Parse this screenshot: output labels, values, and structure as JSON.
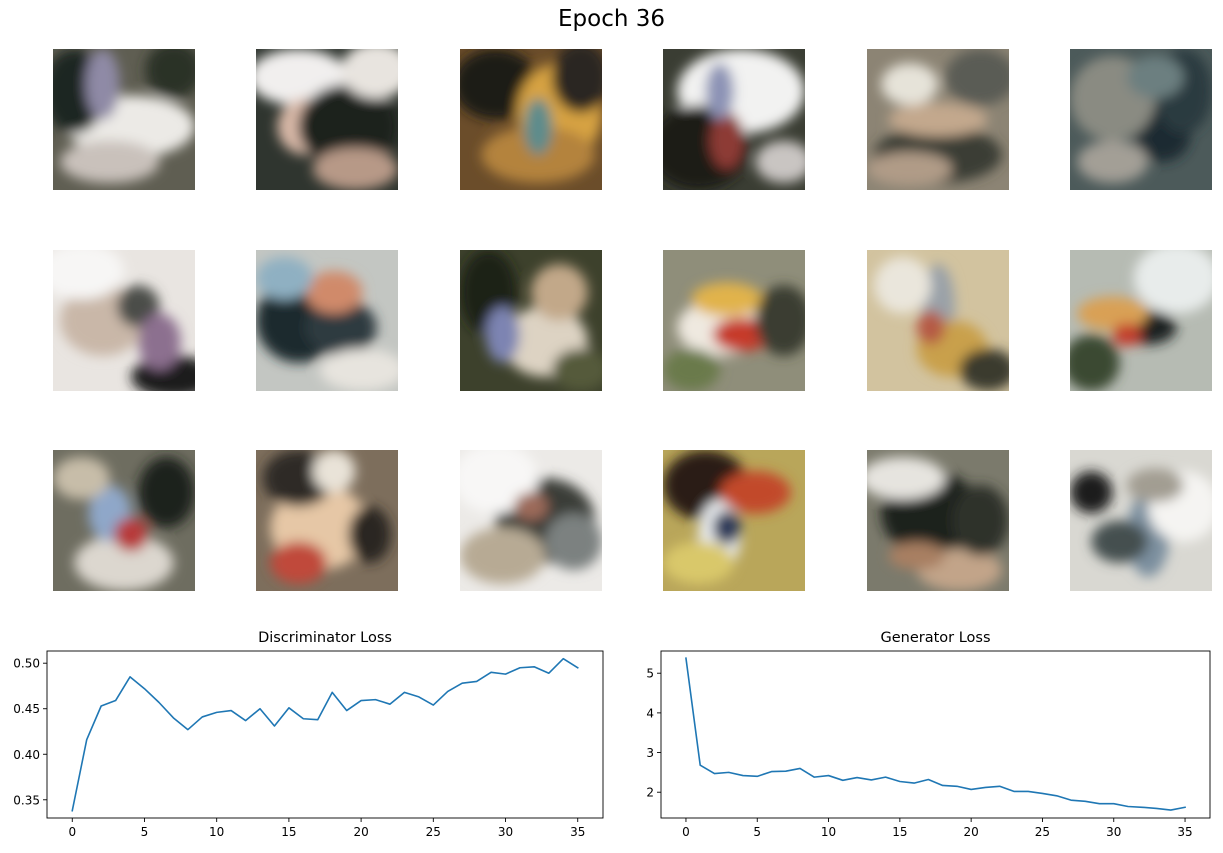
{
  "figure": {
    "suptitle": "Epoch 36",
    "grid": {
      "rows": 3,
      "cols": 6
    },
    "samples": [
      {
        "id": "sample-1",
        "base": "#5f5e52",
        "blobs": [
          [
            "#eceae6",
            0.55,
            0.55,
            0.45,
            0.22
          ],
          [
            "#1f2520",
            0.15,
            0.3,
            0.22,
            0.3
          ],
          [
            "#8f8aa6",
            0.35,
            0.25,
            0.12,
            0.25
          ],
          [
            "#2a3026",
            0.85,
            0.15,
            0.2,
            0.2
          ],
          [
            "#c9c1bb",
            0.4,
            0.8,
            0.35,
            0.15
          ]
        ]
      },
      {
        "id": "sample-2",
        "base": "#2f352f",
        "blobs": [
          [
            "#f1efee",
            0.3,
            0.2,
            0.35,
            0.2
          ],
          [
            "#d9b9a8",
            0.35,
            0.55,
            0.2,
            0.2
          ],
          [
            "#1b201c",
            0.65,
            0.55,
            0.35,
            0.3
          ],
          [
            "#b79987",
            0.7,
            0.85,
            0.3,
            0.15
          ],
          [
            "#e8e4df",
            0.85,
            0.15,
            0.25,
            0.2
          ]
        ]
      },
      {
        "id": "sample-3",
        "base": "#6b4d2a",
        "blobs": [
          [
            "#1b1a16",
            0.25,
            0.25,
            0.3,
            0.25
          ],
          [
            "#d7a343",
            0.7,
            0.45,
            0.3,
            0.35
          ],
          [
            "#b4833e",
            0.55,
            0.75,
            0.4,
            0.2
          ],
          [
            "#5d8c8c",
            0.55,
            0.55,
            0.1,
            0.2
          ],
          [
            "#2b2520",
            0.85,
            0.2,
            0.2,
            0.25
          ]
        ]
      },
      {
        "id": "sample-4",
        "base": "#3a3d33",
        "blobs": [
          [
            "#f2f2f1",
            0.55,
            0.3,
            0.45,
            0.3
          ],
          [
            "#1d1e18",
            0.25,
            0.7,
            0.35,
            0.3
          ],
          [
            "#8d3a34",
            0.45,
            0.65,
            0.12,
            0.2
          ],
          [
            "#c9c5c2",
            0.85,
            0.8,
            0.2,
            0.15
          ],
          [
            "#8c93b5",
            0.4,
            0.3,
            0.1,
            0.2
          ]
        ]
      },
      {
        "id": "sample-5",
        "base": "#8c8474",
        "blobs": [
          [
            "#3a3c36",
            0.5,
            0.75,
            0.45,
            0.2
          ],
          [
            "#c3a88d",
            0.5,
            0.5,
            0.35,
            0.12
          ],
          [
            "#e6e3d9",
            0.3,
            0.25,
            0.2,
            0.15
          ],
          [
            "#5a5c55",
            0.8,
            0.2,
            0.25,
            0.2
          ],
          [
            "#b09b87",
            0.3,
            0.85,
            0.3,
            0.12
          ]
        ]
      },
      {
        "id": "sample-6",
        "base": "#4c5a5a",
        "blobs": [
          [
            "#1e2a33",
            0.65,
            0.6,
            0.2,
            0.2
          ],
          [
            "#8a8b82",
            0.3,
            0.35,
            0.3,
            0.3
          ],
          [
            "#2b3a3f",
            0.8,
            0.3,
            0.2,
            0.3
          ],
          [
            "#a39f96",
            0.3,
            0.8,
            0.25,
            0.15
          ],
          [
            "#6c7f80",
            0.6,
            0.2,
            0.2,
            0.15
          ]
        ]
      },
      {
        "id": "sample-7",
        "base": "#e9e5e1",
        "blobs": [
          [
            "#1a1d1a",
            0.85,
            0.9,
            0.3,
            0.15
          ],
          [
            "#c9b7a8",
            0.35,
            0.5,
            0.3,
            0.25
          ],
          [
            "#4b4e49",
            0.6,
            0.4,
            0.15,
            0.15
          ],
          [
            "#8c6f8f",
            0.75,
            0.65,
            0.15,
            0.2
          ],
          [
            "#f7f6f5",
            0.2,
            0.15,
            0.3,
            0.2
          ]
        ]
      },
      {
        "id": "sample-8",
        "base": "#c3c6c2",
        "blobs": [
          [
            "#1f2b2f",
            0.3,
            0.5,
            0.3,
            0.3
          ],
          [
            "#2f3a3f",
            0.6,
            0.55,
            0.25,
            0.2
          ],
          [
            "#d08a6a",
            0.55,
            0.3,
            0.2,
            0.15
          ],
          [
            "#e7e4de",
            0.75,
            0.85,
            0.3,
            0.15
          ],
          [
            "#8fb0c2",
            0.2,
            0.2,
            0.2,
            0.15
          ]
        ]
      },
      {
        "id": "sample-9",
        "base": "#3d412c",
        "blobs": [
          [
            "#ddd3c3",
            0.6,
            0.65,
            0.3,
            0.25
          ],
          [
            "#1c2018",
            0.2,
            0.3,
            0.2,
            0.3
          ],
          [
            "#7d84b2",
            0.3,
            0.6,
            0.12,
            0.2
          ],
          [
            "#c2a889",
            0.7,
            0.3,
            0.2,
            0.2
          ],
          [
            "#545a3a",
            0.85,
            0.85,
            0.2,
            0.15
          ]
        ]
      },
      {
        "id": "sample-10",
        "base": "#8f8e7a",
        "blobs": [
          [
            "#efe9e0",
            0.4,
            0.55,
            0.3,
            0.2
          ],
          [
            "#c63a2a",
            0.55,
            0.6,
            0.2,
            0.12
          ],
          [
            "#e1b34c",
            0.45,
            0.35,
            0.25,
            0.12
          ],
          [
            "#3a3d30",
            0.85,
            0.5,
            0.2,
            0.25
          ],
          [
            "#6b7a4b",
            0.2,
            0.85,
            0.2,
            0.15
          ]
        ]
      },
      {
        "id": "sample-11",
        "base": "#d2c39f",
        "blobs": [
          [
            "#9aa1a8",
            0.5,
            0.4,
            0.12,
            0.3
          ],
          [
            "#c9a04b",
            0.6,
            0.7,
            0.25,
            0.2
          ],
          [
            "#b55a45",
            0.45,
            0.55,
            0.1,
            0.12
          ],
          [
            "#eae6dc",
            0.25,
            0.25,
            0.2,
            0.2
          ],
          [
            "#3a3a2e",
            0.85,
            0.85,
            0.2,
            0.15
          ]
        ]
      },
      {
        "id": "sample-12",
        "base": "#b6bbb3",
        "blobs": [
          [
            "#1f2420",
            0.55,
            0.55,
            0.2,
            0.12
          ],
          [
            "#d9a054",
            0.3,
            0.45,
            0.25,
            0.12
          ],
          [
            "#3b4a33",
            0.15,
            0.8,
            0.2,
            0.2
          ],
          [
            "#e8eceb",
            0.75,
            0.2,
            0.3,
            0.25
          ],
          [
            "#c23a2a",
            0.4,
            0.6,
            0.1,
            0.08
          ]
        ]
      },
      {
        "id": "sample-13",
        "base": "#6e6d60",
        "blobs": [
          [
            "#dcd7cf",
            0.5,
            0.8,
            0.35,
            0.2
          ],
          [
            "#1c211d",
            0.8,
            0.3,
            0.2,
            0.25
          ],
          [
            "#8fa7c9",
            0.4,
            0.45,
            0.15,
            0.2
          ],
          [
            "#b73a3a",
            0.55,
            0.6,
            0.12,
            0.12
          ],
          [
            "#c7bda9",
            0.2,
            0.2,
            0.2,
            0.15
          ]
        ]
      },
      {
        "id": "sample-14",
        "base": "#7d6e5c",
        "blobs": [
          [
            "#e6c7a6",
            0.45,
            0.55,
            0.35,
            0.3
          ],
          [
            "#2f2c25",
            0.3,
            0.2,
            0.25,
            0.2
          ],
          [
            "#2a2522",
            0.8,
            0.6,
            0.15,
            0.2
          ],
          [
            "#c04a3a",
            0.3,
            0.8,
            0.2,
            0.15
          ],
          [
            "#e9e3d8",
            0.55,
            0.15,
            0.15,
            0.15
          ]
        ]
      },
      {
        "id": "sample-15",
        "base": "#eceae7",
        "blobs": [
          [
            "#3b3e37",
            0.6,
            0.5,
            0.35,
            0.3
          ],
          [
            "#b7aa94",
            0.3,
            0.75,
            0.3,
            0.2
          ],
          [
            "#f8f7f6",
            0.25,
            0.2,
            0.3,
            0.25
          ],
          [
            "#7b8180",
            0.8,
            0.65,
            0.2,
            0.2
          ],
          [
            "#9c6b5a",
            0.5,
            0.4,
            0.12,
            0.1
          ]
        ]
      },
      {
        "id": "sample-16",
        "base": "#b9a65a",
        "blobs": [
          [
            "#2b1e16",
            0.3,
            0.25,
            0.3,
            0.25
          ],
          [
            "#e9ecef",
            0.4,
            0.6,
            0.15,
            0.25
          ],
          [
            "#c24a2a",
            0.65,
            0.3,
            0.25,
            0.15
          ],
          [
            "#d9c86a",
            0.25,
            0.8,
            0.25,
            0.15
          ],
          [
            "#2f3a5a",
            0.45,
            0.55,
            0.1,
            0.12
          ]
        ]
      },
      {
        "id": "sample-17",
        "base": "#7b7a6c",
        "blobs": [
          [
            "#1c201b",
            0.45,
            0.45,
            0.35,
            0.3
          ],
          [
            "#e6e4df",
            0.25,
            0.2,
            0.3,
            0.15
          ],
          [
            "#c2a489",
            0.65,
            0.85,
            0.3,
            0.15
          ],
          [
            "#2d3229",
            0.8,
            0.5,
            0.2,
            0.25
          ],
          [
            "#a87f62",
            0.35,
            0.75,
            0.2,
            0.1
          ]
        ]
      },
      {
        "id": "sample-18",
        "base": "#d9d8d2",
        "blobs": [
          [
            "#1c1d1a",
            0.15,
            0.3,
            0.15,
            0.15
          ],
          [
            "#7b8f9f",
            0.55,
            0.6,
            0.15,
            0.3
          ],
          [
            "#f5f4f2",
            0.8,
            0.4,
            0.25,
            0.25
          ],
          [
            "#45504f",
            0.35,
            0.65,
            0.2,
            0.15
          ],
          [
            "#a29d92",
            0.6,
            0.25,
            0.2,
            0.12
          ]
        ]
      }
    ]
  },
  "chart_data": [
    {
      "type": "line",
      "title": "Discriminator Loss",
      "xlabel": "",
      "ylabel": "",
      "color": "#1f77b4",
      "x": [
        0,
        1,
        2,
        3,
        4,
        5,
        6,
        7,
        8,
        9,
        10,
        11,
        12,
        13,
        14,
        15,
        16,
        17,
        18,
        19,
        20,
        21,
        22,
        23,
        24,
        25,
        26,
        27,
        28,
        29,
        30,
        31,
        32,
        33,
        34,
        35
      ],
      "values": [
        0.338,
        0.416,
        0.453,
        0.459,
        0.485,
        0.472,
        0.457,
        0.44,
        0.427,
        0.441,
        0.446,
        0.448,
        0.437,
        0.45,
        0.431,
        0.451,
        0.439,
        0.438,
        0.468,
        0.448,
        0.459,
        0.46,
        0.455,
        0.468,
        0.463,
        0.454,
        0.469,
        0.478,
        0.48,
        0.49,
        0.488,
        0.495,
        0.496,
        0.489,
        0.505,
        0.495
      ],
      "xlim": [
        -1.75,
        36.75
      ],
      "ylim": [
        0.33,
        0.5134
      ],
      "xticks": [
        0,
        5,
        10,
        15,
        20,
        25,
        30,
        35
      ],
      "yticks": [
        0.35,
        0.4,
        0.45,
        0.5
      ],
      "ytick_labels": [
        "0.35",
        "0.40",
        "0.45",
        "0.50"
      ],
      "grid": false
    },
    {
      "type": "line",
      "title": "Generator Loss",
      "xlabel": "",
      "ylabel": "",
      "color": "#1f77b4",
      "x": [
        0,
        1,
        2,
        3,
        4,
        5,
        6,
        7,
        8,
        9,
        10,
        11,
        12,
        13,
        14,
        15,
        16,
        17,
        18,
        19,
        20,
        21,
        22,
        23,
        24,
        25,
        26,
        27,
        28,
        29,
        30,
        31,
        32,
        33,
        34,
        35
      ],
      "values": [
        5.38,
        2.68,
        2.47,
        2.5,
        2.42,
        2.4,
        2.52,
        2.53,
        2.6,
        2.38,
        2.42,
        2.3,
        2.37,
        2.31,
        2.38,
        2.27,
        2.23,
        2.32,
        2.17,
        2.15,
        2.07,
        2.12,
        2.15,
        2.02,
        2.02,
        1.97,
        1.91,
        1.8,
        1.77,
        1.71,
        1.71,
        1.64,
        1.62,
        1.59,
        1.55,
        1.62
      ],
      "xlim": [
        -1.75,
        36.75
      ],
      "ylim": [
        1.35,
        5.56
      ],
      "xticks": [
        0,
        5,
        10,
        15,
        20,
        25,
        30,
        35
      ],
      "yticks": [
        2,
        3,
        4,
        5
      ],
      "ytick_labels": [
        "2",
        "3",
        "4",
        "5"
      ],
      "grid": false
    }
  ]
}
